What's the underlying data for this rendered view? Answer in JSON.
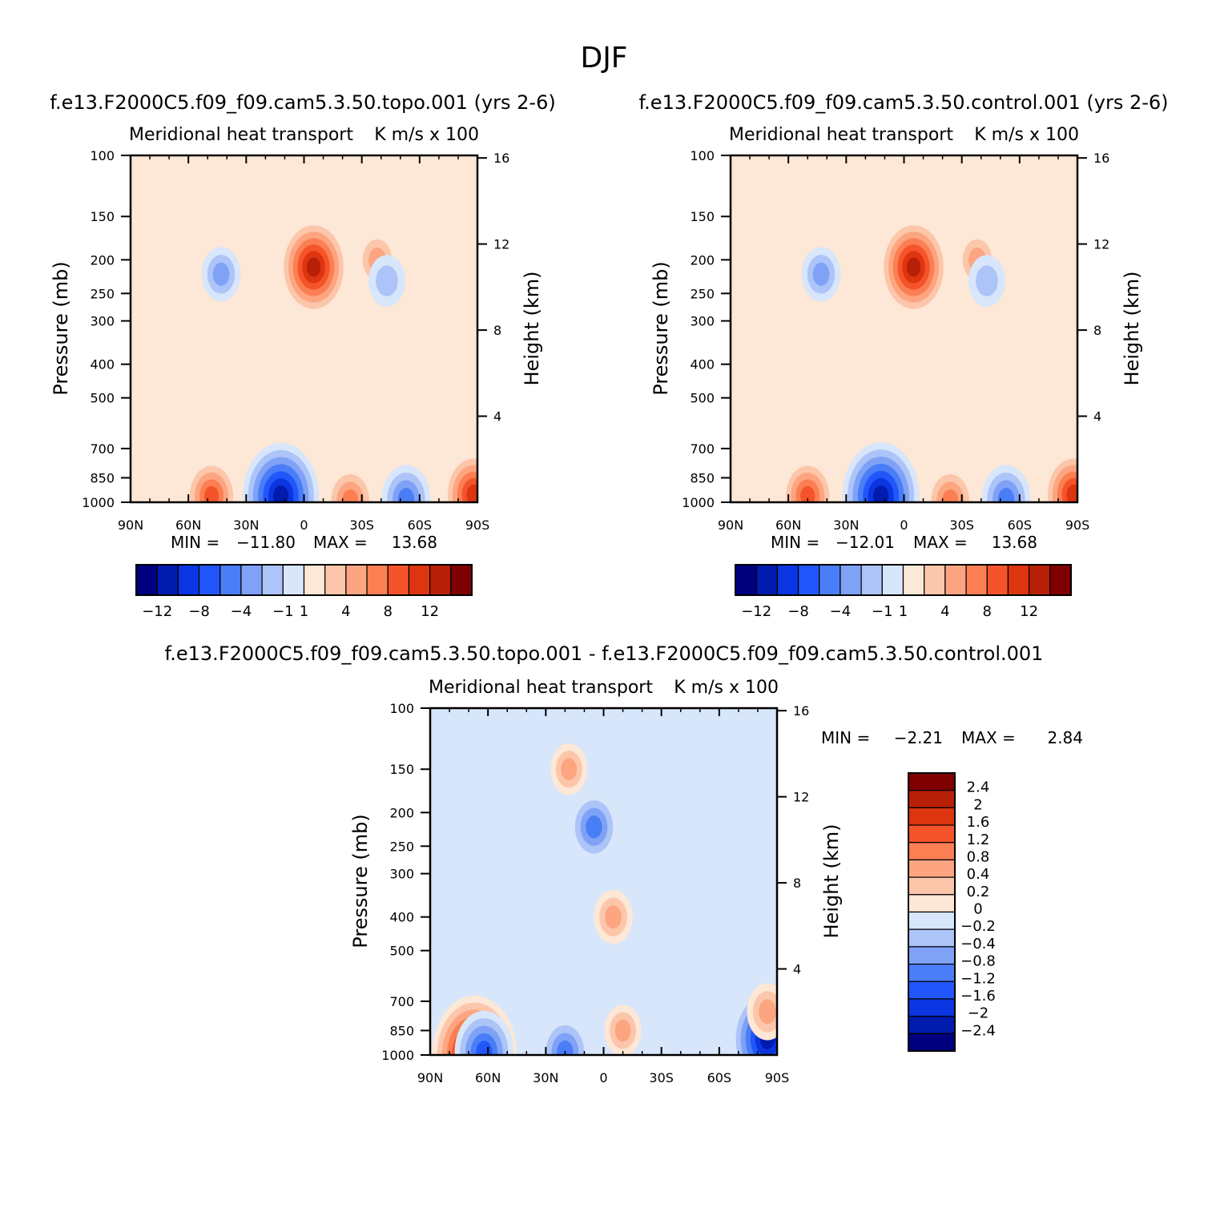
{
  "figure_title": "DJF",
  "chart_data": [
    {
      "type": "heatmap",
      "id": "topo",
      "title": "f.e13.F2000C5.f09_f09.cam5.3.50.topo.001 (yrs 2-6)",
      "subtitle_left": "Meridional heat transport",
      "subtitle_right": "K m/s x 100",
      "xlabel": "",
      "ylabel": "Pressure (mb)",
      "ylabel_right": "Height (km)",
      "x_ticks": [
        "90N",
        "60N",
        "30N",
        "0",
        "30S",
        "60S",
        "90S"
      ],
      "y_ticks": [
        100,
        150,
        200,
        250,
        300,
        400,
        500,
        700,
        850,
        1000
      ],
      "height_ticks": [
        16,
        12,
        8,
        4
      ],
      "min_label": "MIN =",
      "min_value": "-11.80",
      "max_label": "MAX =",
      "max_value": "13.68",
      "colorbar_levels": [
        -12,
        -10,
        -8,
        -6,
        -4,
        -2,
        -1,
        0,
        1,
        2,
        4,
        6,
        8,
        10,
        12
      ],
      "colorbar_labels": [
        "-12",
        "-8",
        "-4",
        "-1",
        "1",
        "4",
        "8",
        "12"
      ],
      "features": [
        {
          "lat": -5,
          "p": 210,
          "value": 10
        },
        {
          "lat": -38,
          "p": 200,
          "value": 3
        },
        {
          "lat": -43,
          "p": 230,
          "value": -2
        },
        {
          "lat": 43,
          "p": 220,
          "value": -2.5
        },
        {
          "lat": 12,
          "p": 960,
          "value": -11.8
        },
        {
          "lat": 48,
          "p": 960,
          "value": 6
        },
        {
          "lat": -24,
          "p": 990,
          "value": 5
        },
        {
          "lat": -53,
          "p": 980,
          "value": -5
        },
        {
          "lat": -88,
          "p": 950,
          "value": 8
        }
      ]
    },
    {
      "type": "heatmap",
      "id": "control",
      "title": "f.e13.F2000C5.f09_f09.cam5.3.50.control.001 (yrs 2-6)",
      "subtitle_left": "Meridional heat transport",
      "subtitle_right": "K m/s x 100",
      "xlabel": "",
      "ylabel": "Pressure (mb)",
      "ylabel_right": "Height (km)",
      "x_ticks": [
        "90N",
        "60N",
        "30N",
        "0",
        "30S",
        "60S",
        "90S"
      ],
      "y_ticks": [
        100,
        150,
        200,
        250,
        300,
        400,
        500,
        700,
        850,
        1000
      ],
      "height_ticks": [
        16,
        12,
        8,
        4
      ],
      "min_label": "MIN =",
      "min_value": "-12.01",
      "max_label": "MAX =",
      "max_value": "13.68",
      "colorbar_levels": [
        -12,
        -10,
        -8,
        -6,
        -4,
        -2,
        -1,
        0,
        1,
        2,
        4,
        6,
        8,
        10,
        12
      ],
      "colorbar_labels": [
        "-12",
        "-8",
        "-4",
        "-1",
        "1",
        "4",
        "8",
        "12"
      ],
      "features": [
        {
          "lat": -5,
          "p": 210,
          "value": 10
        },
        {
          "lat": -38,
          "p": 200,
          "value": 3
        },
        {
          "lat": -43,
          "p": 230,
          "value": -2
        },
        {
          "lat": 43,
          "p": 220,
          "value": -2.5
        },
        {
          "lat": 12,
          "p": 960,
          "value": -12.0
        },
        {
          "lat": 50,
          "p": 960,
          "value": 6
        },
        {
          "lat": -24,
          "p": 990,
          "value": 5
        },
        {
          "lat": -53,
          "p": 980,
          "value": -5
        },
        {
          "lat": -88,
          "p": 950,
          "value": 8
        }
      ]
    },
    {
      "type": "heatmap",
      "id": "difference",
      "title": "f.e13.F2000C5.f09_f09.cam5.3.50.topo.001 - f.e13.F2000C5.f09_f09.cam5.3.50.control.001",
      "subtitle_left": "Meridional heat transport",
      "subtitle_right": "K m/s x 100",
      "xlabel": "",
      "ylabel": "Pressure (mb)",
      "ylabel_right": "Height (km)",
      "x_ticks": [
        "90N",
        "60N",
        "30N",
        "0",
        "30S",
        "60S",
        "90S"
      ],
      "y_ticks": [
        100,
        150,
        200,
        250,
        300,
        400,
        500,
        700,
        850,
        1000
      ],
      "height_ticks": [
        16,
        12,
        8,
        4
      ],
      "min_label": "MIN =",
      "min_value": "-2.21",
      "max_label": "MAX =",
      "max_value": "2.84",
      "colorbar_levels": [
        -2.4,
        -2,
        -1.6,
        -1.2,
        -0.8,
        -0.4,
        -0.2,
        0,
        0.2,
        0.4,
        0.8,
        1.2,
        1.6,
        2,
        2.4
      ],
      "colorbar_labels": [
        "2.4",
        "2",
        "1.6",
        "1.2",
        "0.8",
        "0.4",
        "0.2",
        "0",
        "-0.2",
        "-0.4",
        "-0.8",
        "-1.2",
        "-1.6",
        "-2",
        "-2.4"
      ],
      "features": [
        {
          "lat": 5,
          "p": 220,
          "value": -1.0
        },
        {
          "lat": -5,
          "p": 400,
          "value": 0.5
        },
        {
          "lat": 18,
          "p": 150,
          "value": 0.4
        },
        {
          "lat": 67,
          "p": 1000,
          "value": 2.8
        },
        {
          "lat": 62,
          "p": 980,
          "value": -1.5
        },
        {
          "lat": 20,
          "p": 980,
          "value": -1.0
        },
        {
          "lat": -85,
          "p": 900,
          "value": -2.2
        },
        {
          "lat": -85,
          "p": 750,
          "value": 0.6
        },
        {
          "lat": -10,
          "p": 850,
          "value": 0.4
        }
      ]
    }
  ],
  "palette": [
    "#00007f",
    "#001bad",
    "#0a35e0",
    "#2157fa",
    "#4a7ef7",
    "#7fa2f7",
    "#adc4f9",
    "#d7e6fa",
    "#fde7d6",
    "#fcc6aa",
    "#fca580",
    "#fb7f52",
    "#f5532a",
    "#dc3510",
    "#b81f07",
    "#7f0000"
  ]
}
